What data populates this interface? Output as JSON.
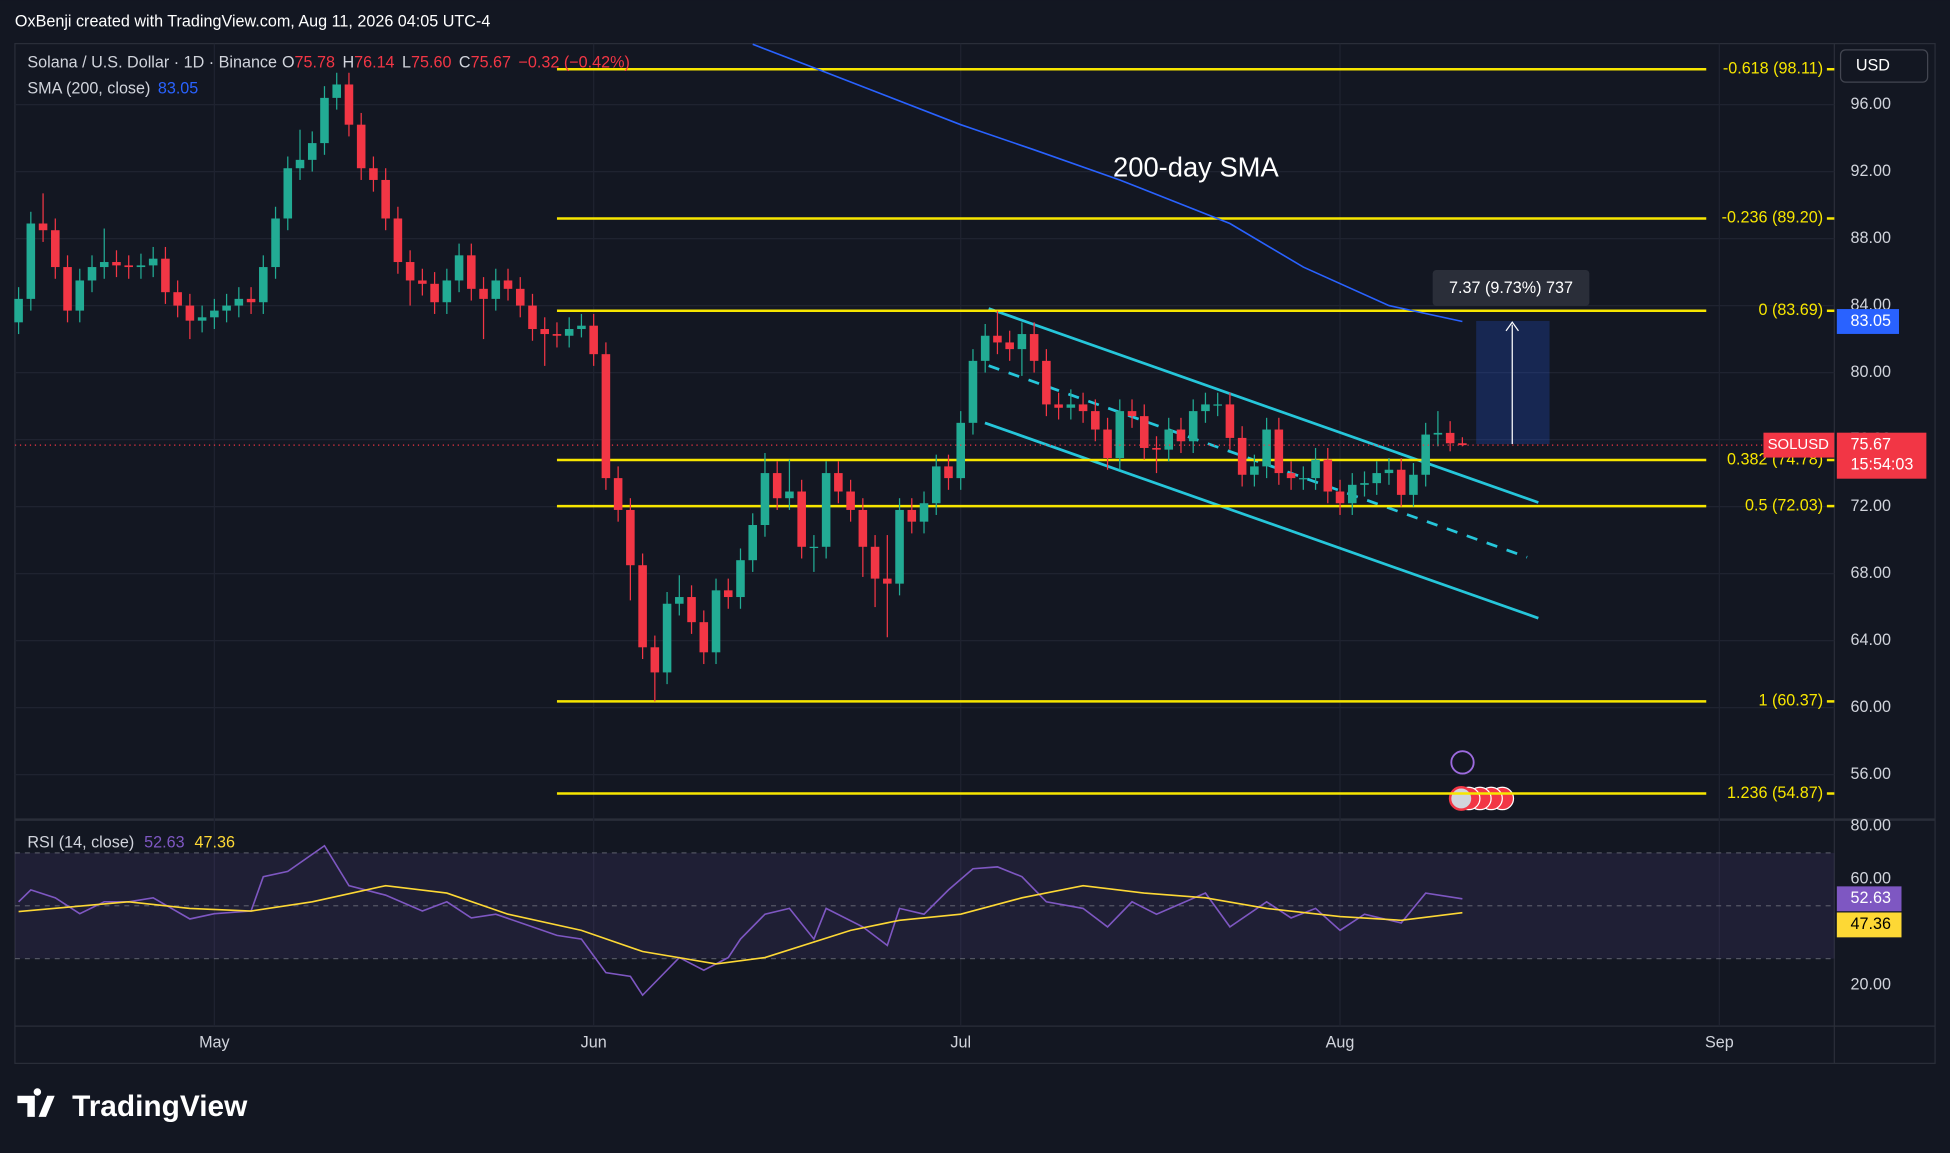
{
  "header": "OxBenji created with TradingView.com, Aug 11, 2026 04:05 UTC-4",
  "footer_logo": "TradingView",
  "chart_data": [
    {
      "type": "candlestick",
      "title": "Solana / U.S. Dollar · 1D · Binance",
      "legend_ohlc": [
        {
          "key": "O",
          "text": "75.78"
        },
        {
          "key": "H",
          "text": "76.14"
        },
        {
          "key": "L",
          "text": "75.60"
        },
        {
          "key": "C",
          "text": "75.67"
        }
      ],
      "change": "−0.32 (−0.42%)",
      "currency": "USD",
      "symbol": "SOLUSD",
      "last_price_label": "75.67",
      "countdown": "15:54:03",
      "up_color": "#22ab94",
      "down_color": "#f23645",
      "open": [
        83.0,
        84.4,
        88.9,
        88.5,
        86.3,
        83.7,
        85.5,
        86.3,
        86.6,
        86.4,
        86.3,
        86.4,
        86.8,
        84.8,
        84.0,
        83.1,
        83.3,
        83.7,
        84.0,
        84.4,
        84.2,
        86.3,
        89.2,
        92.2,
        92.7,
        93.7,
        96.4,
        97.2,
        94.8,
        92.2,
        91.5,
        89.2,
        86.6,
        85.5,
        85.3,
        84.2,
        85.5,
        87.0,
        85.0,
        84.4,
        85.5,
        85.0,
        84.0,
        82.6,
        82.3,
        82.2,
        82.6,
        82.8,
        81.1,
        73.7,
        71.8,
        68.5,
        63.6,
        62.1,
        66.2,
        66.6,
        65.1,
        63.3,
        67.0,
        66.6,
        68.8,
        70.9,
        74.0,
        72.5,
        72.9,
        69.6,
        69.6,
        74.0,
        72.9,
        71.8,
        69.6,
        67.7,
        67.4,
        71.8,
        71.1,
        72.2,
        74.4,
        73.7,
        77.0,
        80.7,
        82.2,
        81.8,
        81.4,
        82.3,
        80.7,
        78.1,
        77.9,
        78.1,
        77.7,
        76.6,
        74.9,
        77.7,
        77.4,
        75.5,
        75.4,
        76.6,
        75.9,
        77.7,
        78.1,
        78.1,
        76.1,
        73.9,
        74.4,
        76.6,
        74.0,
        73.7,
        73.7,
        74.8,
        72.9,
        72.2,
        73.3,
        73.4,
        74.0,
        74.2,
        72.7,
        73.9,
        76.3,
        76.4,
        75.78
      ],
      "high": [
        85.1,
        89.6,
        90.7,
        89.2,
        87.0,
        86.2,
        87.0,
        88.6,
        87.3,
        87.0,
        87.1,
        87.5,
        87.5,
        85.5,
        84.7,
        84.0,
        84.4,
        84.7,
        85.1,
        85.1,
        87.0,
        89.9,
        92.9,
        94.5,
        94.4,
        97.1,
        97.9,
        97.9,
        95.5,
        92.9,
        92.2,
        89.9,
        87.3,
        86.2,
        86.0,
        86.2,
        87.7,
        87.7,
        85.7,
        86.2,
        86.2,
        85.7,
        84.7,
        83.3,
        83.0,
        83.3,
        83.5,
        83.5,
        81.8,
        74.4,
        72.5,
        69.2,
        64.3,
        66.9,
        67.9,
        67.3,
        65.8,
        67.7,
        67.7,
        69.5,
        71.6,
        75.2,
        74.7,
        74.8,
        73.6,
        70.3,
        74.7,
        74.7,
        73.6,
        72.5,
        70.3,
        70.3,
        72.5,
        72.5,
        72.9,
        75.1,
        75.1,
        77.7,
        81.4,
        82.9,
        83.69,
        82.5,
        83.0,
        83.0,
        81.4,
        78.8,
        79.0,
        78.8,
        78.4,
        77.3,
        78.4,
        78.4,
        78.1,
        76.2,
        77.3,
        77.3,
        78.4,
        78.8,
        78.8,
        78.8,
        76.8,
        75.1,
        77.3,
        77.3,
        74.7,
        74.4,
        75.5,
        75.5,
        73.6,
        74.0,
        74.1,
        74.7,
        74.9,
        74.9,
        74.6,
        77.0,
        77.7,
        77.1,
        76.14
      ],
      "low": [
        82.3,
        83.7,
        87.8,
        85.6,
        83.0,
        83.0,
        84.8,
        85.6,
        85.7,
        85.6,
        85.6,
        85.7,
        84.1,
        83.3,
        82.0,
        82.4,
        82.6,
        83.0,
        83.3,
        83.5,
        83.5,
        85.6,
        88.5,
        91.5,
        92.0,
        93.0,
        95.7,
        94.1,
        91.5,
        90.8,
        88.5,
        85.9,
        84.0,
        84.6,
        83.5,
        83.5,
        84.8,
        84.3,
        82.0,
        83.7,
        84.3,
        83.3,
        81.9,
        80.4,
        81.5,
        81.5,
        82.1,
        80.4,
        73.0,
        71.1,
        66.4,
        62.9,
        60.37,
        61.4,
        65.5,
        64.4,
        62.6,
        62.6,
        65.9,
        65.9,
        68.1,
        70.2,
        71.8,
        71.8,
        68.9,
        68.1,
        68.9,
        72.2,
        71.1,
        67.8,
        66.0,
        64.2,
        66.7,
        70.4,
        70.4,
        71.5,
        73.0,
        73.0,
        76.3,
        80.0,
        81.1,
        80.7,
        79.8,
        80.0,
        77.4,
        77.2,
        77.2,
        77.0,
        75.9,
        74.2,
        74.2,
        76.7,
        74.8,
        74.0,
        74.7,
        75.2,
        75.2,
        77.0,
        77.4,
        75.4,
        73.2,
        73.2,
        73.7,
        73.3,
        73.0,
        73.0,
        73.0,
        72.2,
        71.5,
        71.5,
        72.6,
        72.7,
        73.3,
        72.0,
        72.0,
        73.2,
        75.6,
        75.3,
        75.6
      ],
      "close": [
        84.4,
        88.9,
        88.5,
        86.3,
        83.7,
        85.5,
        86.3,
        86.6,
        86.4,
        86.3,
        86.4,
        86.8,
        84.8,
        84.0,
        83.1,
        83.3,
        83.7,
        84.0,
        84.4,
        84.2,
        86.3,
        89.2,
        92.2,
        92.7,
        93.7,
        96.4,
        97.2,
        94.8,
        92.2,
        91.5,
        89.2,
        86.6,
        85.5,
        85.3,
        84.2,
        85.5,
        87.0,
        85.0,
        84.4,
        85.5,
        85.0,
        84.0,
        82.6,
        82.3,
        82.2,
        82.6,
        82.8,
        81.1,
        73.7,
        71.8,
        68.5,
        63.6,
        62.1,
        66.2,
        66.6,
        65.1,
        63.3,
        67.0,
        66.6,
        68.8,
        70.9,
        74.0,
        72.5,
        72.9,
        69.6,
        69.6,
        74.0,
        72.9,
        71.8,
        69.6,
        67.7,
        67.4,
        71.8,
        71.1,
        72.2,
        74.4,
        73.7,
        77.0,
        80.7,
        82.2,
        81.8,
        81.4,
        82.3,
        80.7,
        78.1,
        77.9,
        78.1,
        77.7,
        76.6,
        74.9,
        77.7,
        77.4,
        75.5,
        75.4,
        76.6,
        75.9,
        77.7,
        78.1,
        78.1,
        76.1,
        73.9,
        74.4,
        76.6,
        74.0,
        73.7,
        73.7,
        74.8,
        72.9,
        72.2,
        73.3,
        73.4,
        74.0,
        74.2,
        72.7,
        73.9,
        76.3,
        76.4,
        75.78,
        75.67
      ],
      "xlim": [
        -0.3,
        148.4
      ],
      "xticks": [
        {
          "value": 16,
          "label": "May"
        },
        {
          "value": 47,
          "label": "Jun"
        },
        {
          "value": 77,
          "label": "Jul"
        },
        {
          "value": 108,
          "label": "Aug"
        },
        {
          "value": 139,
          "label": "Sep"
        }
      ],
      "ylim": [
        53.46,
        99.64
      ],
      "yticks": [
        {
          "value": 56,
          "label": "56.00"
        },
        {
          "value": 60,
          "label": "60.00"
        },
        {
          "value": 64,
          "label": "64.00"
        },
        {
          "value": 68,
          "label": "68.00"
        },
        {
          "value": 72,
          "label": "72.00"
        },
        {
          "value": 76,
          "label": "76.00"
        },
        {
          "value": 80,
          "label": "80.00"
        },
        {
          "value": 84,
          "label": "84.00"
        },
        {
          "value": 88,
          "label": "88.00"
        },
        {
          "value": 92,
          "label": "92.00"
        },
        {
          "value": 96,
          "label": "96.00"
        }
      ],
      "grid": true,
      "sma": {
        "name": "SMA (200, close)",
        "value_label": "83.05",
        "color": "#2962ff",
        "x": [
          60,
          65,
          77,
          83,
          90,
          99,
          105,
          112,
          118
        ],
        "values": [
          99.6,
          98.2,
          94.8,
          93.3,
          91.5,
          88.9,
          86.3,
          84.0,
          83.05
        ]
      },
      "annotations": [
        {
          "text": "200-day SMA"
        }
      ],
      "fib_color": "#f7e600",
      "fib_levels": [
        {
          "label": "-0.618 (98.11)",
          "value": 98.11
        },
        {
          "label": "-0.236 (89.20)",
          "value": 89.2
        },
        {
          "label": "0 (83.69)",
          "value": 83.69
        },
        {
          "label": "0.382 (74.78)",
          "value": 74.78
        },
        {
          "label": "0.5 (72.03)",
          "value": 72.03
        },
        {
          "label": "1 (60.37)",
          "value": 60.37
        },
        {
          "label": "1.236 (54.87)",
          "value": 54.87
        }
      ],
      "channel_color": "#26c6da",
      "measure_label": "7.37 (9.73%) 737"
    },
    {
      "type": "line",
      "title": "RSI (14, close)",
      "ylim": [
        4.5,
        82.1
      ],
      "yticks": [
        {
          "value": 20,
          "label": "20.00"
        },
        {
          "value": 60,
          "label": "60.00"
        },
        {
          "value": 80,
          "label": "80.00"
        }
      ],
      "bands": [
        30,
        70
      ],
      "midline": 50,
      "band_color": "#7e57c2",
      "series": [
        {
          "color": "#7e57c2",
          "value_label": "52.63",
          "x": [
            0,
            1,
            3,
            5,
            7,
            9,
            11,
            14,
            16,
            19,
            20,
            22,
            25,
            27,
            30,
            33,
            35,
            37,
            39,
            42,
            44,
            46,
            48,
            50,
            51,
            54,
            56,
            58,
            59,
            61,
            63,
            65,
            66,
            69,
            71,
            72,
            74,
            76,
            78,
            80,
            82,
            84,
            87,
            89,
            91,
            93,
            97,
            99,
            102,
            104,
            106,
            108,
            110,
            113,
            115,
            118
          ],
          "values": [
            51.5,
            56,
            53,
            47,
            51.5,
            51.5,
            53,
            45,
            47,
            48,
            61,
            63,
            72.7,
            57.6,
            54,
            48,
            51.5,
            45.4,
            46.8,
            42,
            38.8,
            37.4,
            24.7,
            23.3,
            16.2,
            30.4,
            25.6,
            30.4,
            37.4,
            46.8,
            49,
            37.4,
            49,
            42,
            35,
            49,
            46.8,
            56,
            64,
            64.7,
            61,
            51.5,
            49,
            42,
            51.5,
            46.8,
            54.8,
            42,
            51.5,
            45.4,
            49,
            40.7,
            46.8,
            43.5,
            54.8,
            52.63
          ]
        },
        {
          "color": "#fdd835",
          "value_label": "47.36",
          "x": [
            0,
            9,
            14,
            19,
            24,
            30,
            35,
            40,
            46,
            51,
            57,
            61,
            68,
            72,
            77,
            82,
            87,
            92,
            97,
            102,
            108,
            113,
            118
          ],
          "values": [
            47.8,
            51.5,
            49,
            48,
            51.5,
            57.6,
            54.8,
            46.8,
            40.7,
            32.7,
            28,
            30.4,
            40.7,
            44.5,
            46.8,
            53,
            57.6,
            54.8,
            53,
            49,
            45.9,
            44.5,
            47.36
          ]
        }
      ]
    }
  ]
}
